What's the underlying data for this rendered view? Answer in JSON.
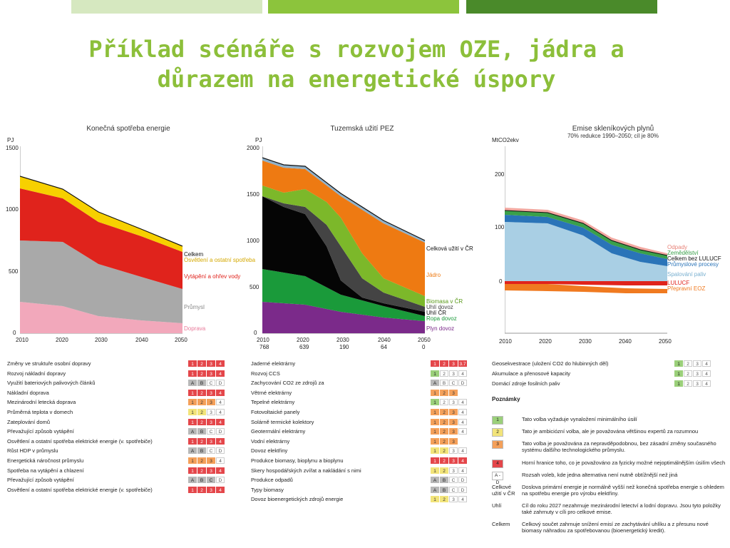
{
  "slide": {
    "title_line1": "Příklad scénáře s rozvojem OZE, jádra a",
    "title_line2": "důrazem na energetické úspory",
    "bar_colors": [
      "#d6e8c0",
      "#8cc43c",
      "#4a8a2a"
    ]
  },
  "charts": {
    "chart1": {
      "title": "Konečná spotřeba energie",
      "unit": "PJ",
      "yticks": [
        "1500",
        "1000",
        "500",
        "0"
      ],
      "xticks": [
        "2010",
        "2020",
        "2030",
        "2040",
        "2050"
      ],
      "legend": [
        "Celkem",
        "Osvětlení a ostatní spotřeba",
        "Vytápění a ohřev vody",
        "Průmysl",
        "Doprava"
      ]
    },
    "chart2": {
      "title": "Tuzemská užití PEZ",
      "unit": "PJ",
      "yticks": [
        "2000",
        "1500",
        "1000",
        "500",
        "0"
      ],
      "xticks": [
        "2010",
        "2020",
        "2030",
        "2040",
        "2050"
      ],
      "xsub": [
        "768",
        "639",
        "190",
        "64",
        "0"
      ],
      "legend": [
        "Celková užití v ČR",
        "Jádro",
        "Biomasa v ČR",
        "Uhlí dovoz",
        "Uhlí ČR",
        "Ropa dovoz",
        "Plyn dovoz"
      ]
    },
    "chart3": {
      "title": "Emise skleníkových plynů",
      "subtitle": "70% redukce 1990–2050; cíl je 80%",
      "unit": "MtCO2ekv",
      "yticks": [
        "200",
        "100",
        "0"
      ],
      "xticks": [
        "2010",
        "2020",
        "2030",
        "2040",
        "2050"
      ],
      "legend_top": [
        "Odpady",
        "Zemědělství",
        "Celkem bez LULUCF",
        "Průmyslové procesy"
      ],
      "legend_mid": "Spalování paliv",
      "legend_bot": [
        "LULUCF",
        "Přepravní EOZ"
      ]
    }
  },
  "table1": [
    {
      "label": "Změny ve struktuře osobní dopravy",
      "cells": [
        "1",
        "2",
        "3",
        "4"
      ],
      "sel": 4,
      "color": "r"
    },
    {
      "label": "Rozvoj nákladní dopravy",
      "cells": [
        "1",
        "2",
        "3",
        "4"
      ],
      "sel": 4,
      "color": "r"
    },
    {
      "label": "Využití bateriových palivových článků",
      "cells": [
        "A",
        "B",
        "C",
        "D"
      ],
      "sel": 2,
      "color": "s"
    },
    {
      "label": "Nákladní doprava",
      "cells": [
        "1",
        "2",
        "3",
        "4"
      ],
      "sel": 4,
      "color": "r"
    },
    {
      "label": "Mezinárodní letecká doprava",
      "cells": [
        "1",
        "2",
        "3",
        "4"
      ],
      "sel": 3,
      "color": "o"
    },
    {
      "label": "Průměrná teplota v domech",
      "cells": [
        "1",
        "2",
        "3",
        "4"
      ],
      "sel": 2,
      "color": "y"
    },
    {
      "label": "Zateplování domů",
      "cells": [
        "1",
        "2",
        "3",
        "4"
      ],
      "sel": 4,
      "color": "r"
    },
    {
      "label": "Převažující způsob vytápění",
      "cells": [
        "A",
        "B",
        "C",
        "D"
      ],
      "sel": 2,
      "color": "s"
    },
    {
      "label": "Osvětlení a ostatní spotřeba elektrické energie (v. spotřebiče)",
      "cells": [
        "1",
        "2",
        "3",
        "4"
      ],
      "sel": 4,
      "color": "r"
    },
    {
      "label": "Růst HDP v průmyslu",
      "cells": [
        "A",
        "B",
        "C",
        "D"
      ],
      "sel": 2,
      "color": "s"
    },
    {
      "label": "Energetická náročnost průmyslu",
      "cells": [
        "1",
        "2",
        "3",
        "4"
      ],
      "sel": 3,
      "color": "o"
    },
    {
      "label": "Spotřeba na vytápění a chlazení",
      "cells": [
        "1",
        "2",
        "3",
        "4"
      ],
      "sel": 4,
      "color": "r"
    },
    {
      "label": "Převažující způsob vytápění",
      "cells": [
        "A",
        "B",
        "C",
        "D"
      ],
      "sel": 3,
      "color": "s"
    },
    {
      "label": "Osvětlení a ostatní spotřeba elektrické energie (v. spotřebiče)",
      "cells": [
        "1",
        "2",
        "3",
        "4"
      ],
      "sel": 4,
      "color": "r"
    }
  ],
  "table2": [
    {
      "label": "Jaderné elektrárny",
      "cells": [
        "1",
        "2",
        "3",
        "3.7"
      ],
      "sel": 4,
      "color": "r"
    },
    {
      "label": "Rozvoj CCS",
      "cells": [
        "1",
        "2",
        "3",
        "4"
      ],
      "sel": 1,
      "color": "g"
    },
    {
      "label": "Zachycování CO2 ze zdrojů za",
      "cells": [
        "A",
        "B",
        "C",
        "D"
      ],
      "sel": 1,
      "color": "s"
    },
    {
      "label": "Větrné elektrárny",
      "cells": [
        "1",
        "2",
        "3"
      ],
      "sel": 3,
      "color": "o"
    },
    {
      "label": "Tepelné elektrárny",
      "cells": [
        "1",
        "2",
        "3",
        "4"
      ],
      "sel": 1,
      "color": "g"
    },
    {
      "label": "Fotovoltaické panely",
      "cells": [
        "1",
        "2",
        "3",
        "4"
      ],
      "sel": 3,
      "color": "o"
    },
    {
      "label": "Solárně termické kolektory",
      "cells": [
        "1",
        "2",
        "3",
        "4"
      ],
      "sel": 3,
      "color": "o"
    },
    {
      "label": "Geotermální elektrárny",
      "cells": [
        "1",
        "2",
        "3",
        "4"
      ],
      "sel": 3,
      "color": "o"
    },
    {
      "label": "Vodní elektrárny",
      "cells": [
        "1",
        "2",
        "3"
      ],
      "sel": 3,
      "color": "o"
    },
    {
      "label": "Dovoz elektřiny",
      "cells": [
        "1",
        "2",
        "3",
        "4"
      ],
      "sel": 2,
      "color": "y"
    },
    {
      "label": "Produkce biomasy, bioplynu a bioplynu",
      "cells": [
        "1",
        "2",
        "3",
        "4"
      ],
      "sel": 4,
      "color": "r"
    },
    {
      "label": "Skery hospodářských zvířat a nakládání s nimi",
      "cells": [
        "1",
        "2",
        "3",
        "4"
      ],
      "sel": 2,
      "color": "y"
    },
    {
      "label": "Produkce odpadů",
      "cells": [
        "A",
        "B",
        "C",
        "D"
      ],
      "sel": 2,
      "color": "s"
    },
    {
      "label": "Typy biomasy",
      "cells": [
        "A",
        "B",
        "C",
        "D"
      ],
      "sel": 2,
      "color": "s"
    },
    {
      "label": "Dovoz bioenergetických zdrojů energie",
      "cells": [
        "1",
        "2",
        "3",
        "4"
      ],
      "sel": 2,
      "color": "y"
    }
  ],
  "table3": [
    {
      "label": "Geosekvestrace (uložení CO2 do hlubinných děl)",
      "cells": [
        "1",
        "2",
        "3",
        "4"
      ],
      "sel": 1,
      "color": "g"
    },
    {
      "label": "Akumulace a přenosové kapacity",
      "cells": [
        "1",
        "2",
        "3",
        "4"
      ],
      "sel": 1,
      "color": "g"
    },
    {
      "label": "Domácí zdroje fosilních paliv",
      "cells": [
        "1",
        "2",
        "3",
        "4"
      ],
      "sel": 1,
      "color": "g"
    }
  ],
  "notes": {
    "heading": "Poznámky",
    "items": [
      {
        "key": "1",
        "color": "#9bd07a",
        "text": "Tato volba vyžaduje vynaložení minimálního úsilí"
      },
      {
        "key": "2",
        "color": "#f2e47a",
        "text": "Tato je ambiciózní volba, ale je považována většinou expertů za rozumnou"
      },
      {
        "key": "3",
        "color": "#f4a05a",
        "text": "Tato volba je považována za nepravděpodobnou, bez zásadní změny současného systému dalšího technologického průmyslu."
      },
      {
        "key": "4",
        "color": "#e4464a",
        "text": "Horní hranice toho, co je považováno za fyzicky možné nejoptimálnějším úsilím všech"
      },
      {
        "key": "A - D",
        "color": "#ffffff",
        "text": "Rozsah voleb, kde jedna alternativa není nutně obtížnější než jiná"
      }
    ],
    "extra": [
      {
        "key": "Celkové užití v ČR",
        "text": "Doslova primární energie je normálně vyšší než konečná spotřeba energie s ohledem na spotřebu energie pro výrobu elektřiny."
      },
      {
        "key": "Uhlí",
        "text": "Cíl do roku 2027 nezahrnuje mezinárodní letectví a lodní dopravu. Jsou tyto položky také zahrnuty v cíli pro celkové emise."
      },
      {
        "key": "Celkem",
        "text": "Celkový součet zahrnuje snížení emisí ze zachytávání uhlíku a z přesunu nové biomasy náhradou za spotřebovanou (bioenergetický kredit)."
      }
    ]
  }
}
